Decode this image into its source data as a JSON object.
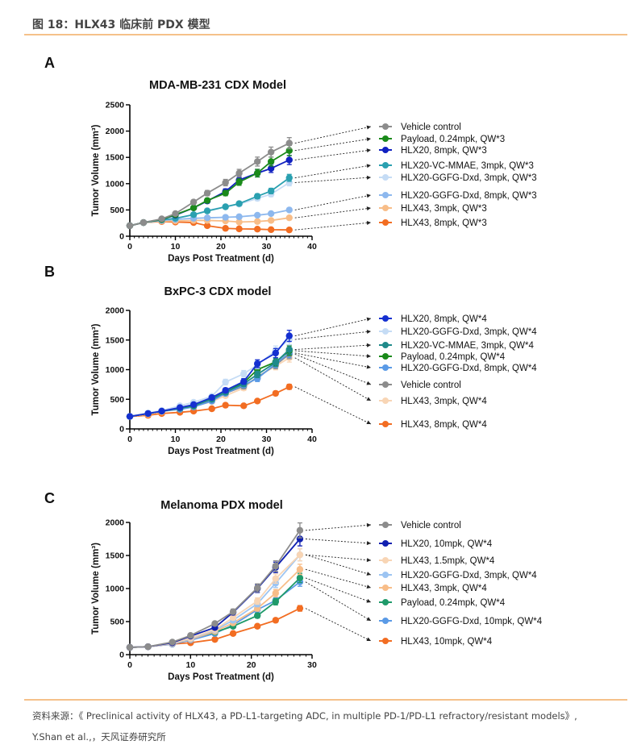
{
  "header": {
    "figure_title": "图 18：HLX43  临床前 PDX 模型"
  },
  "footer": {
    "source_line1": "资料来源：《 Preclinical activity of HLX43, a PD-L1-targeting ADC, in multiple PD-1/PD-L1 refractory/resistant models》,",
    "source_line2": "Y.Shan et al.,，天风证券研究所"
  },
  "chart_data": [
    {
      "panel": "A",
      "type": "line",
      "title": "MDA-MB-231 CDX Model",
      "xlabel": "Days Post Treatment (d)",
      "ylabel": "Tumor Volume (mm³)",
      "xlim": [
        0,
        40
      ],
      "ylim": [
        0,
        2500
      ],
      "xticks": [
        0,
        10,
        20,
        30,
        40
      ],
      "yticks": [
        0,
        500,
        1000,
        1500,
        2000,
        2500
      ],
      "legend_position": "right",
      "x": [
        0,
        3,
        7,
        10,
        14,
        17,
        21,
        24,
        28,
        31,
        35
      ],
      "series": [
        {
          "name": "Vehicle control",
          "color": "#8c8c8c",
          "values": [
            200,
            260,
            330,
            430,
            650,
            820,
            1020,
            1200,
            1420,
            1600,
            1770
          ]
        },
        {
          "name": "Payload, 0.24mpk, QW*3",
          "color": "#1a8a1a",
          "values": [
            200,
            260,
            320,
            410,
            540,
            680,
            820,
            1030,
            1200,
            1420,
            1630
          ]
        },
        {
          "name": "HLX20, 8mpk, QW*3",
          "color": "#1020c0",
          "values": [
            200,
            260,
            320,
            400,
            540,
            670,
            850,
            1070,
            1200,
            1290,
            1450
          ]
        },
        {
          "name": "HLX20-VC-MMAE, 3mpk, QW*3",
          "color": "#2aa0b0",
          "values": [
            200,
            260,
            310,
            340,
            410,
            480,
            560,
            620,
            760,
            860,
            1110
          ]
        },
        {
          "name": "HLX20-GGFG-Dxd, 3mpk, QW*3",
          "color": "#c5dcf5",
          "values": [
            200,
            260,
            310,
            340,
            410,
            490,
            560,
            610,
            720,
            800,
            1020
          ]
        },
        {
          "name": "HLX20-GGFG-Dxd, 8mpk, QW*3",
          "color": "#8db8ee",
          "values": [
            200,
            260,
            300,
            320,
            340,
            350,
            360,
            370,
            400,
            430,
            500
          ]
        },
        {
          "name": "HLX43, 3mpk, QW*3",
          "color": "#f8bd88",
          "values": [
            200,
            260,
            290,
            290,
            300,
            300,
            290,
            270,
            280,
            300,
            350
          ]
        },
        {
          "name": "HLX43, 8mpk, QW*3",
          "color": "#f26d22",
          "values": [
            200,
            260,
            280,
            270,
            260,
            200,
            150,
            140,
            135,
            125,
            120
          ]
        }
      ]
    },
    {
      "panel": "B",
      "type": "line",
      "title": "BxPC-3 CDX model",
      "xlabel": "Days Post Treatment (d)",
      "ylabel": "Tumor Volume (mm³)",
      "xlim": [
        0,
        40
      ],
      "ylim": [
        0,
        2000
      ],
      "xticks": [
        0,
        10,
        20,
        30,
        40
      ],
      "yticks": [
        0,
        500,
        1000,
        1500,
        2000
      ],
      "legend_position": "right",
      "x": [
        0,
        4,
        7,
        11,
        14,
        18,
        21,
        25,
        28,
        32,
        35
      ],
      "series": [
        {
          "name": "HLX20, 8mpk, QW*4",
          "color": "#1530d0",
          "values": [
            210,
            260,
            300,
            360,
            410,
            530,
            650,
            800,
            1100,
            1280,
            1570
          ]
        },
        {
          "name": "HLX20-GGFG-Dxd, 3mpk, QW*4",
          "color": "#c5dcf5",
          "values": [
            210,
            270,
            310,
            390,
            450,
            550,
            790,
            930,
            1080,
            1320,
            1510
          ]
        },
        {
          "name": "HLX20-VC-MMAE, 3mpk, QW*4",
          "color": "#1f8a8a",
          "values": [
            210,
            260,
            300,
            350,
            400,
            500,
            620,
            760,
            920,
            1120,
            1340
          ]
        },
        {
          "name": "Payload, 0.24mpk, QW*4",
          "color": "#1a8a1a",
          "values": [
            210,
            260,
            300,
            350,
            390,
            510,
            620,
            780,
            1000,
            1130,
            1320
          ]
        },
        {
          "name": "HLX20-GGFG-Dxd, 8mpk, QW*4",
          "color": "#5a9ae6",
          "values": [
            210,
            260,
            300,
            330,
            370,
            470,
            600,
            740,
            850,
            1100,
            1280
          ]
        },
        {
          "name": "Vehicle control",
          "color": "#8c8c8c",
          "values": [
            210,
            260,
            300,
            340,
            380,
            490,
            600,
            720,
            870,
            1080,
            1260
          ]
        },
        {
          "name": "HLX43, 3mpk, QW*4",
          "color": "#f8d5b5",
          "values": [
            210,
            250,
            290,
            340,
            380,
            460,
            560,
            690,
            880,
            1060,
            1200
          ]
        },
        {
          "name": "HLX43, 8mpk, QW*4",
          "color": "#f26d22",
          "values": [
            210,
            230,
            260,
            280,
            300,
            340,
            400,
            390,
            470,
            600,
            710
          ]
        }
      ]
    },
    {
      "panel": "C",
      "type": "line",
      "title": "Melanoma PDX model",
      "xlabel": "Days Post Treatment (d)",
      "ylabel": "Tumor Volume (mm³)",
      "xlim": [
        0,
        30
      ],
      "ylim": [
        0,
        2000
      ],
      "xticks": [
        0,
        10,
        20,
        30
      ],
      "yticks": [
        0,
        500,
        1000,
        1500,
        2000
      ],
      "legend_position": "right",
      "x": [
        0,
        3,
        7,
        10,
        14,
        17,
        21,
        24,
        28
      ],
      "series": [
        {
          "name": "Vehicle control",
          "color": "#8c8c8c",
          "values": [
            110,
            120,
            190,
            290,
            470,
            650,
            1010,
            1340,
            1880
          ]
        },
        {
          "name": "HLX20, 10mpk, QW*4",
          "color": "#1020b0",
          "values": [
            110,
            120,
            180,
            280,
            410,
            640,
            1000,
            1320,
            1750
          ]
        },
        {
          "name": "HLX43, 1.5mpk, QW*4",
          "color": "#f8d5b5",
          "values": [
            110,
            120,
            170,
            250,
            380,
            560,
            810,
            1150,
            1510
          ]
        },
        {
          "name": "HLX20-GGFG-Dxd, 3mpk, QW*4",
          "color": "#9cc4f2",
          "values": [
            110,
            120,
            170,
            240,
            370,
            520,
            770,
            1080,
            1510
          ]
        },
        {
          "name": "HLX43, 3mpk, QW*4",
          "color": "#f8bd88",
          "values": [
            110,
            120,
            170,
            230,
            350,
            480,
            700,
            930,
            1290
          ]
        },
        {
          "name": "Payload, 0.24mpk, QW*4",
          "color": "#1f9a6a",
          "values": [
            110,
            120,
            170,
            240,
            340,
            430,
            590,
            800,
            1160
          ]
        },
        {
          "name": "HLX20-GGFG-Dxd, 10mpk, QW*4",
          "color": "#5a9ae6",
          "values": [
            110,
            120,
            160,
            220,
            320,
            450,
            680,
            820,
            1100
          ]
        },
        {
          "name": "HLX43, 10mpk, QW*4",
          "color": "#f26d22",
          "values": [
            110,
            120,
            160,
            180,
            230,
            320,
            430,
            520,
            700
          ]
        }
      ]
    }
  ]
}
